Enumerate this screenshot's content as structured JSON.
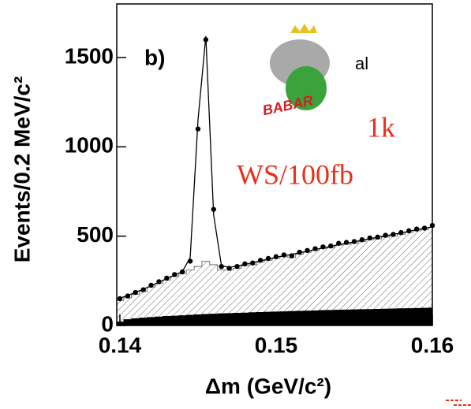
{
  "chart_data": {
    "type": "scatter",
    "panel_label": "b)",
    "partial_text": "al",
    "logo_text": "BABAR",
    "annotations": [
      "1k",
      "WS/100fb"
    ],
    "xlabel": "Δm (GeV/c²)",
    "ylabel": "Events/0.2 MeV/c²",
    "xlim": [
      0.1398,
      0.16
    ],
    "ylim": [
      0,
      1800
    ],
    "xticks": [
      0.14,
      0.15,
      0.16
    ],
    "yticks": [
      0,
      500,
      1000,
      1500
    ],
    "x": [
      0.14,
      0.1405,
      0.141,
      0.1415,
      0.142,
      0.1425,
      0.143,
      0.1435,
      0.144,
      0.1445,
      0.145,
      0.1455,
      0.146,
      0.1465,
      0.147,
      0.1475,
      0.148,
      0.1485,
      0.149,
      0.1495,
      0.15,
      0.1505,
      0.151,
      0.1515,
      0.152,
      0.1525,
      0.153,
      0.1535,
      0.154,
      0.1545,
      0.155,
      0.1555,
      0.156,
      0.1565,
      0.157,
      0.1575,
      0.158,
      0.1585,
      0.159,
      0.1595,
      0.16
    ],
    "series": [
      {
        "style": "points",
        "color": "#000000",
        "values": [
          150,
          165,
          185,
          200,
          225,
          245,
          265,
          285,
          300,
          360,
          1100,
          1600,
          650,
          330,
          320,
          330,
          345,
          350,
          365,
          375,
          385,
          395,
          390,
          410,
          420,
          430,
          440,
          445,
          460,
          465,
          470,
          480,
          490,
          495,
          505,
          510,
          520,
          530,
          540,
          545,
          560
        ]
      },
      {
        "style": "line",
        "color": "#000000",
        "values": [
          152,
          168,
          186,
          203,
          222,
          242,
          262,
          282,
          302,
          380,
          1150,
          1620,
          620,
          335,
          325,
          333,
          342,
          352,
          362,
          372,
          382,
          390,
          398,
          407,
          416,
          425,
          434,
          443,
          452,
          460,
          468,
          477,
          486,
          494,
          502,
          510,
          518,
          527,
          536,
          544,
          552
        ]
      },
      {
        "style": "hatched",
        "color": "#555555",
        "values": [
          140,
          155,
          175,
          190,
          215,
          235,
          255,
          275,
          290,
          310,
          330,
          360,
          340,
          310,
          310,
          320,
          335,
          340,
          355,
          365,
          375,
          385,
          380,
          400,
          410,
          420,
          430,
          435,
          450,
          455,
          460,
          470,
          480,
          485,
          495,
          500,
          510,
          520,
          530,
          535,
          550
        ]
      },
      {
        "style": "filled",
        "color": "#000000",
        "values": [
          20,
          33,
          38,
          42,
          45,
          48,
          51,
          53,
          55,
          58,
          60,
          62,
          64,
          66,
          67,
          69,
          70,
          72,
          73,
          75,
          76,
          77,
          79,
          80,
          81,
          82,
          84,
          85,
          86,
          87,
          88,
          89,
          90,
          91,
          92,
          93,
          94,
          95,
          96,
          97,
          98
        ]
      }
    ]
  }
}
